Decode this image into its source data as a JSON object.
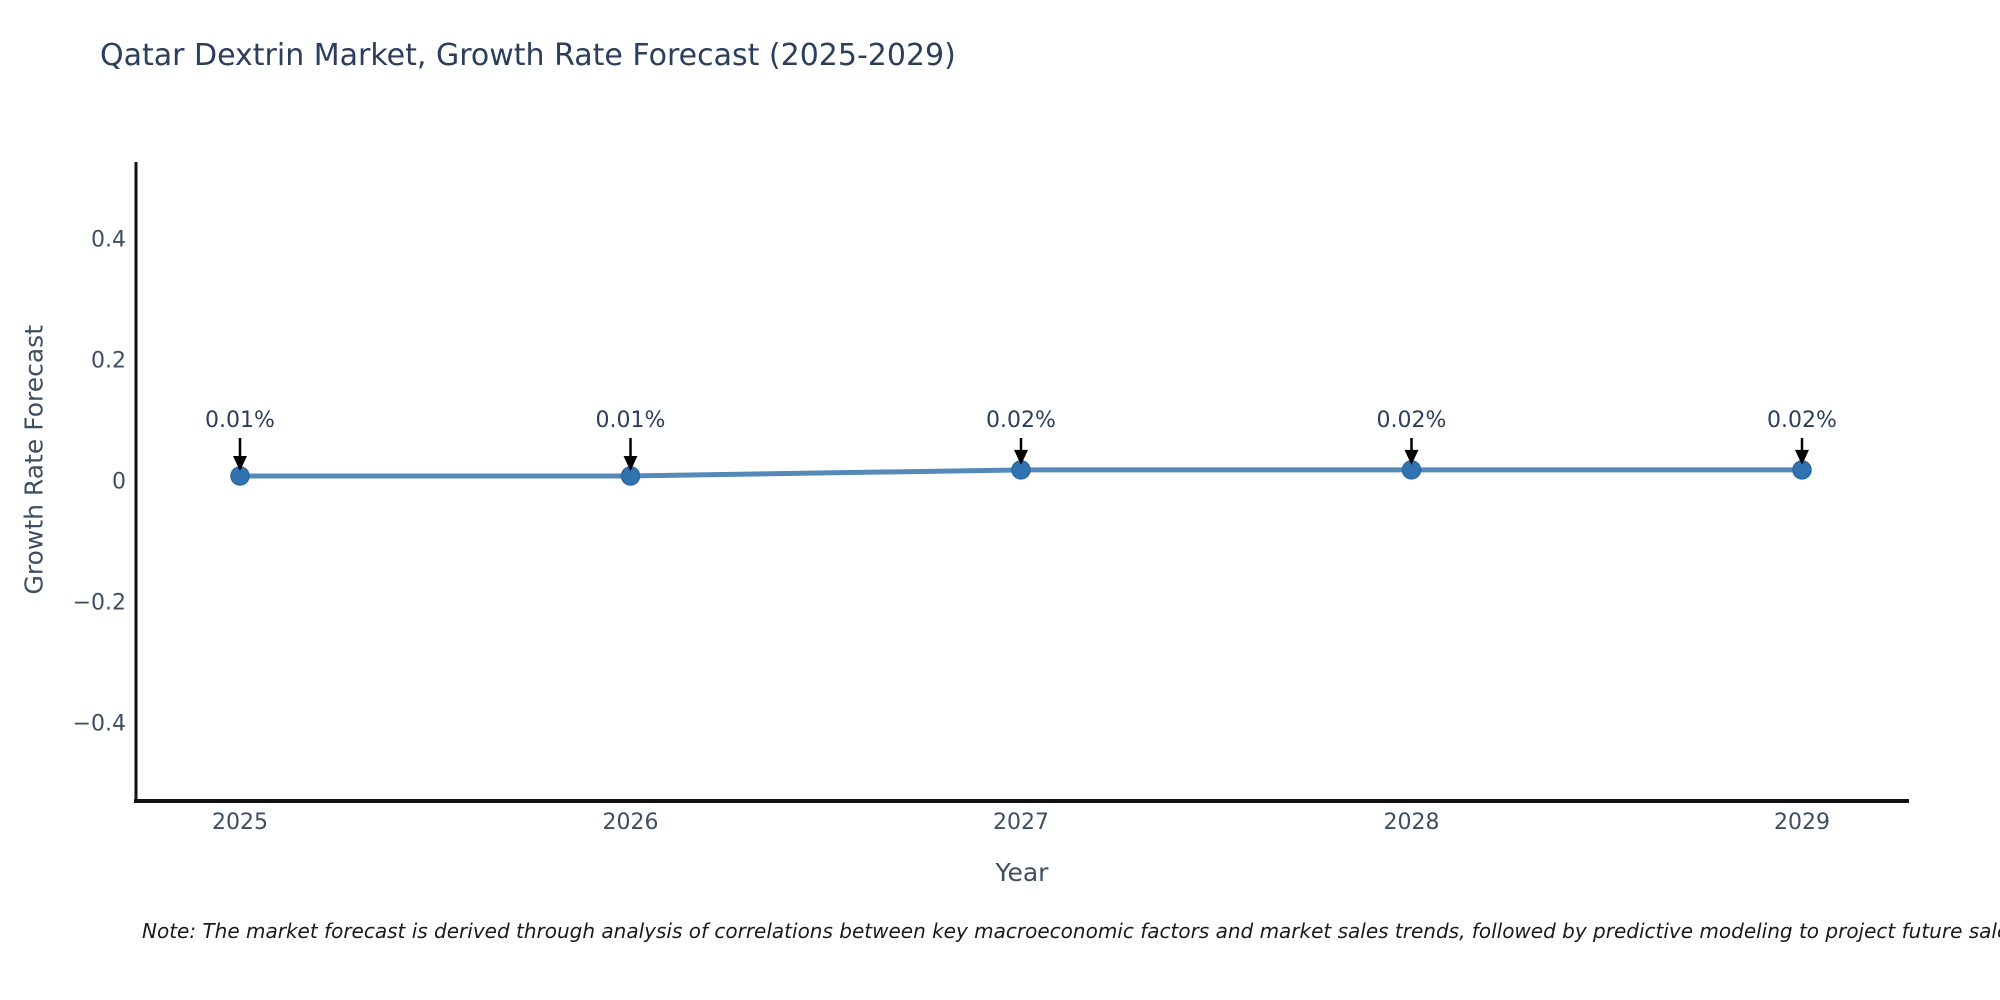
{
  "title": "Qatar Dextrin Market, Growth Rate Forecast (2025-2029)",
  "note": "Note: The market forecast is derived through analysis of correlations between key macroeconomic factors and market sales trends, followed by predictive modeling to project future sales",
  "chart_data": {
    "type": "line",
    "title": "Qatar Dextrin Market, Growth Rate Forecast (2025-2029)",
    "xlabel": "Year",
    "ylabel": "Growth Rate Forecast",
    "x": [
      2025,
      2026,
      2027,
      2028,
      2029
    ],
    "series": [
      {
        "name": "Growth Rate Forecast",
        "values": [
          0.01,
          0.01,
          0.02,
          0.02,
          0.02
        ]
      }
    ],
    "point_labels": [
      "0.01%",
      "0.01%",
      "0.02%",
      "0.02%",
      "0.02%"
    ],
    "xtick_labels": [
      "2025",
      "2026",
      "2027",
      "2028",
      "2029"
    ],
    "yticks": [
      0.4,
      0.2,
      0,
      -0.2,
      -0.4
    ],
    "ytick_labels": [
      "0.4",
      "0.2",
      "0",
      "−0.2",
      "−0.4"
    ],
    "ylim": [
      -0.53,
      0.53
    ],
    "grid": false,
    "legend_position": "none",
    "colors": {
      "line": "#5589b8",
      "marker": "#3173b1",
      "marker_edge": "#2a67a5",
      "arrow": "#000000",
      "axis_spine": "#111111",
      "title_text": "#2c3e5d",
      "tick_text": "#3d4e63"
    }
  }
}
